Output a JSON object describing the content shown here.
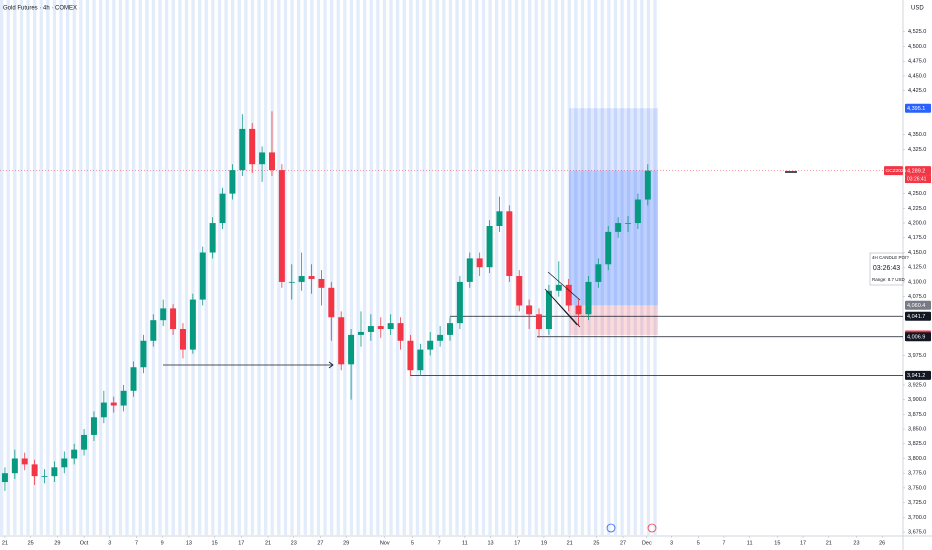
{
  "chart_data": {
    "type": "candlestick",
    "title": "Gold Futures · 4h · COMEX",
    "currency": "USD",
    "up_color": "#089981",
    "down_color": "#f23645",
    "open": [
      3760,
      3775,
      3800,
      3790,
      3770,
      3770,
      3785,
      3800,
      3815,
      3840,
      3870,
      3895,
      3890,
      3915,
      3955,
      4000,
      4035,
      4055,
      4020,
      3985,
      4070,
      4150,
      4200,
      4250,
      4290,
      4360,
      4300,
      4320,
      4290,
      4100,
      4100,
      4110,
      4105,
      4090,
      4040,
      3960,
      4010,
      4015,
      4025,
      4020,
      4030,
      4000,
      3950,
      3985,
      4000,
      4010,
      4030,
      4100,
      4140,
      4125,
      4195,
      4220,
      4110,
      4060,
      4045,
      4020,
      4085,
      4095,
      4060,
      4045,
      4100,
      4130,
      4185,
      4200,
      4200,
      4240
    ],
    "high": [
      3785,
      3815,
      3810,
      3798,
      3782,
      3795,
      3812,
      3825,
      3850,
      3880,
      3915,
      3905,
      3925,
      3965,
      4010,
      4045,
      4070,
      4062,
      4030,
      4080,
      4160,
      4210,
      4260,
      4300,
      4385,
      4370,
      4330,
      4390,
      4300,
      4130,
      4150,
      4130,
      4120,
      4100,
      4050,
      4020,
      4050,
      4045,
      4040,
      4045,
      4040,
      4010,
      3995,
      4015,
      4025,
      4040,
      4110,
      4150,
      4150,
      4205,
      4245,
      4230,
      4120,
      4070,
      4055,
      4095,
      4135,
      4105,
      4070,
      4110,
      4140,
      4195,
      4210,
      4212,
      4250,
      4300
    ],
    "low": [
      3745,
      3765,
      3780,
      3755,
      3758,
      3760,
      3775,
      3790,
      3805,
      3830,
      3860,
      3878,
      3880,
      3905,
      3945,
      3990,
      4025,
      4010,
      3970,
      3978,
      4060,
      4140,
      4190,
      4240,
      4280,
      4285,
      4270,
      4280,
      4090,
      4070,
      4085,
      4080,
      4060,
      4000,
      3950,
      3900,
      3990,
      4000,
      4005,
      4010,
      3985,
      3940,
      3940,
      3975,
      3990,
      4000,
      4020,
      4090,
      4110,
      4115,
      4185,
      4100,
      4050,
      4020,
      4005,
      4010,
      4075,
      4050,
      4025,
      4035,
      4090,
      4120,
      4175,
      4185,
      4190,
      4230
    ],
    "close": [
      3775,
      3800,
      3790,
      3770,
      3770,
      3785,
      3800,
      3815,
      3840,
      3870,
      3895,
      3890,
      3915,
      3955,
      4000,
      4035,
      4055,
      4020,
      3985,
      4070,
      4150,
      4200,
      4250,
      4290,
      4360,
      4300,
      4320,
      4290,
      4100,
      4100,
      4110,
      4105,
      4090,
      4040,
      3960,
      4010,
      4015,
      4025,
      4020,
      4030,
      4000,
      3950,
      3985,
      4000,
      4010,
      4030,
      4100,
      4140,
      4125,
      4195,
      4220,
      4110,
      4060,
      4045,
      4020,
      4085,
      4095,
      4060,
      4045,
      4100,
      4130,
      4185,
      4200,
      4200,
      4240,
      4289
    ],
    "xlim": [
      -0.5,
      90.5
    ],
    "xticks": [
      {
        "value": 0.0,
        "label": "21"
      },
      {
        "value": 2.6,
        "label": "25"
      },
      {
        "value": 5.3,
        "label": "29"
      },
      {
        "value": 8.0,
        "label": "Oct"
      },
      {
        "value": 10.6,
        "label": "3"
      },
      {
        "value": 13.3,
        "label": "7"
      },
      {
        "value": 15.9,
        "label": "9"
      },
      {
        "value": 18.6,
        "label": "13"
      },
      {
        "value": 21.2,
        "label": "15"
      },
      {
        "value": 23.9,
        "label": "17"
      },
      {
        "value": 26.6,
        "label": "21"
      },
      {
        "value": 29.2,
        "label": "23"
      },
      {
        "value": 31.9,
        "label": "27"
      },
      {
        "value": 34.5,
        "label": "29"
      },
      {
        "value": 38.4,
        "label": "Nov"
      },
      {
        "value": 41.2,
        "label": "5"
      },
      {
        "value": 43.9,
        "label": "7"
      },
      {
        "value": 46.5,
        "label": "11"
      },
      {
        "value": 49.1,
        "label": "13"
      },
      {
        "value": 51.8,
        "label": "17"
      },
      {
        "value": 54.5,
        "label": "19"
      },
      {
        "value": 57.1,
        "label": "21"
      },
      {
        "value": 59.8,
        "label": "25"
      },
      {
        "value": 62.5,
        "label": "27"
      },
      {
        "value": 64.9,
        "label": "Dec"
      },
      {
        "value": 67.4,
        "label": "3"
      },
      {
        "value": 70.1,
        "label": "5"
      },
      {
        "value": 72.7,
        "label": "7"
      },
      {
        "value": 75.3,
        "label": "11"
      },
      {
        "value": 78.1,
        "label": "15"
      },
      {
        "value": 80.7,
        "label": "17"
      },
      {
        "value": 83.3,
        "label": "21"
      },
      {
        "value": 86.1,
        "label": "23"
      },
      {
        "value": 88.7,
        "label": "26"
      }
    ],
    "ylim": [
      3670,
      4579
    ],
    "yticks": [
      {
        "value": 3675,
        "label": "3,675.0"
      },
      {
        "value": 3700,
        "label": "3,700.0"
      },
      {
        "value": 3725,
        "label": "3,725.0"
      },
      {
        "value": 3750,
        "label": "3,750.0"
      },
      {
        "value": 3775,
        "label": "3,775.0"
      },
      {
        "value": 3800,
        "label": "3,800.0"
      },
      {
        "value": 3825,
        "label": "3,825.0"
      },
      {
        "value": 3850,
        "label": "3,850.0"
      },
      {
        "value": 3875,
        "label": "3,875.0"
      },
      {
        "value": 3900,
        "label": "3,900.0"
      },
      {
        "value": 3925,
        "label": "3,925.0"
      },
      {
        "value": 3975,
        "label": "3,975.0"
      },
      {
        "value": 4075,
        "label": "4,075.0"
      },
      {
        "value": 4100,
        "label": "4,100.0"
      },
      {
        "value": 4125,
        "label": "4,125.0"
      },
      {
        "value": 4150,
        "label": "4,150.0"
      },
      {
        "value": 4175,
        "label": "4,175.0"
      },
      {
        "value": 4200,
        "label": "4,200.0"
      },
      {
        "value": 4225,
        "label": "4,225.0"
      },
      {
        "value": 4250,
        "label": "4,250.0"
      },
      {
        "value": 4325,
        "label": "4,325.0"
      },
      {
        "value": 4350,
        "label": "4,350.0"
      },
      {
        "value": 4425,
        "label": "4,425.0"
      },
      {
        "value": 4450,
        "label": "4,450.0"
      },
      {
        "value": 4475,
        "label": "4,475.0"
      },
      {
        "value": 4500,
        "label": "4,500.0"
      },
      {
        "value": 4525,
        "label": "4,525.0"
      }
    ],
    "price_labels": [
      {
        "value": 4395.1,
        "label": "4,395.1",
        "color": "#2962ff"
      },
      {
        "value": 4289.2,
        "label": "4,289.2",
        "color": "#f23645"
      },
      {
        "value": 4060.4,
        "label": "4,060.4",
        "color": "#787b86"
      },
      {
        "value": 4041.7,
        "label": "4,041.7",
        "color": "#131722"
      },
      {
        "value": 4009.9,
        "label": "4,009.9",
        "color": "#f23645"
      },
      {
        "value": 4006.9,
        "label": "4,006.9",
        "color": "#131722"
      },
      {
        "value": 3941.2,
        "label": "3,941.2",
        "color": "#131722"
      }
    ],
    "symbol_tag": "GCZ2025",
    "countdown": "03:26:41",
    "info_box": {
      "title": "4H CANDLE POI?",
      "timer": "03:26:43",
      "range": "Range: 8.7 USD"
    }
  }
}
